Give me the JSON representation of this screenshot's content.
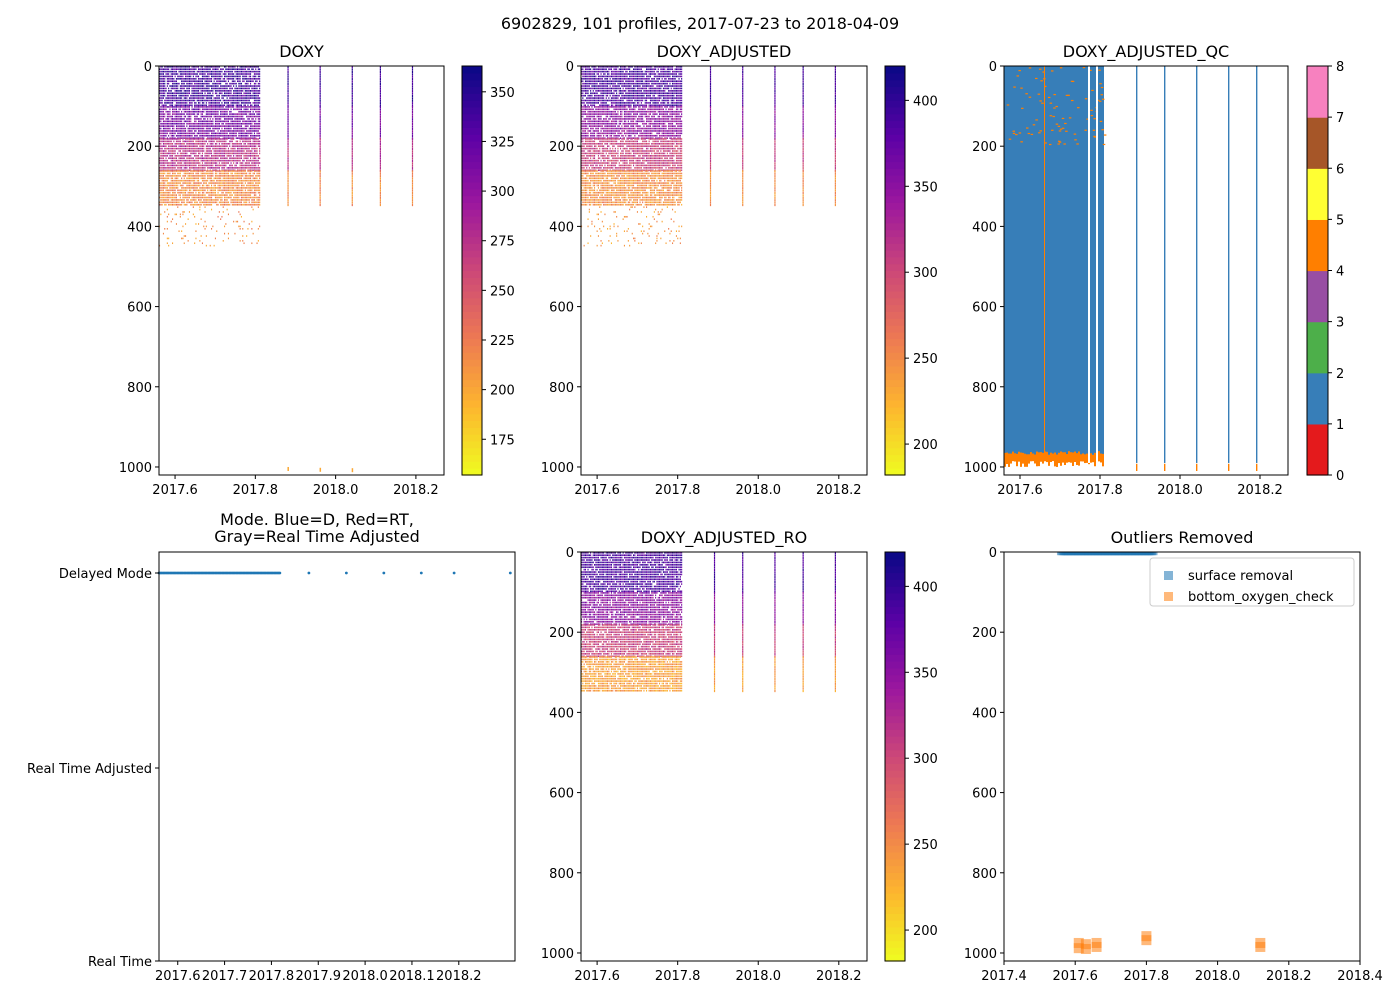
{
  "figure": {
    "suptitle": "6902829, 101 profiles, 2017-07-23 to 2018-04-09"
  },
  "colors": {
    "plasma_r": [
      "#f0f921",
      "#fdb42f",
      "#ed7953",
      "#cc4778",
      "#9c179e",
      "#5c01a6",
      "#0d0887"
    ],
    "qc": [
      "#e41a1c",
      "#377eb8",
      "#4daf4a",
      "#984ea3",
      "#ff7f00",
      "#ffff33",
      "#a65628",
      "#f781bf",
      "#999999"
    ],
    "mode_dot": "#1f77b4",
    "surface_removal": "#1f77b4",
    "bottom_oxygen_check": "#ff7f0e"
  },
  "chart_data": [
    {
      "id": "doxy",
      "type": "heatmap",
      "title": "DOXY",
      "xlim": [
        2017.56,
        2018.27
      ],
      "ylim": [
        1020,
        0
      ],
      "xticks": [
        2017.6,
        2017.8,
        2018.0,
        2018.2
      ],
      "xtick_labels": [
        "2017.6",
        "2017.8",
        "2018.0",
        "2018.2"
      ],
      "yticks": [
        0,
        200,
        400,
        600,
        800,
        1000
      ],
      "ytick_labels": [
        "0",
        "200",
        "400",
        "600",
        "800",
        "1000"
      ],
      "cbar_range": [
        157,
        363
      ],
      "cbar_ticks": [
        175,
        200,
        225,
        250,
        275,
        300,
        325,
        350
      ],
      "cbar_labels": [
        "175",
        "200",
        "225",
        "250",
        "275",
        "300",
        "325",
        "350"
      ],
      "dense_x": [
        2017.56,
        2017.81
      ],
      "sparse_x": [
        2017.88,
        2017.96,
        2018.04,
        2018.11,
        2018.19
      ],
      "bands": [
        [
          0,
          100,
          340
        ],
        [
          100,
          180,
          315
        ],
        [
          180,
          260,
          275
        ],
        [
          260,
          350,
          215
        ],
        [
          350,
          450,
          210
        ]
      ],
      "bottom_dots": [
        [
          2017.88,
          1000
        ],
        [
          2017.96,
          1002
        ],
        [
          2018.04,
          1003
        ]
      ]
    },
    {
      "id": "doxy_adj",
      "type": "heatmap",
      "title": "DOXY_ADJUSTED",
      "xlim": [
        2017.56,
        2018.27
      ],
      "ylim": [
        1020,
        0
      ],
      "xticks": [
        2017.6,
        2017.8,
        2018.0,
        2018.2
      ],
      "xtick_labels": [
        "2017.6",
        "2017.8",
        "2018.0",
        "2018.2"
      ],
      "yticks": [
        0,
        200,
        400,
        600,
        800,
        1000
      ],
      "ytick_labels": [
        "0",
        "200",
        "400",
        "600",
        "800",
        "1000"
      ],
      "cbar_range": [
        182,
        420
      ],
      "cbar_ticks": [
        200,
        250,
        300,
        350,
        400
      ],
      "cbar_labels": [
        "200",
        "250",
        "300",
        "350",
        "400"
      ],
      "dense_x": [
        2017.56,
        2017.81
      ],
      "sparse_x": [
        2017.88,
        2017.96,
        2018.04,
        2018.11,
        2018.19
      ],
      "bands": [
        [
          0,
          100,
          390
        ],
        [
          100,
          180,
          350
        ],
        [
          180,
          260,
          305
        ],
        [
          260,
          350,
          245
        ],
        [
          350,
          450,
          240
        ]
      ],
      "bottom_dots": []
    },
    {
      "id": "doxy_adj_qc",
      "type": "heatmap",
      "title": "DOXY_ADJUSTED_QC",
      "xlim": [
        2017.56,
        2018.27
      ],
      "ylim": [
        1020,
        0
      ],
      "xticks": [
        2017.6,
        2017.8,
        2018.0,
        2018.2
      ],
      "xtick_labels": [
        "2017.6",
        "2017.8",
        "2018.0",
        "2018.2"
      ],
      "yticks": [
        0,
        200,
        400,
        600,
        800,
        1000
      ],
      "ytick_labels": [
        "0",
        "200",
        "400",
        "600",
        "800",
        "1000"
      ],
      "cbar_range": [
        0,
        8
      ],
      "cbar_ticks": [
        0,
        1,
        2,
        3,
        4,
        5,
        6,
        7,
        8
      ],
      "cbar_labels": [
        "0",
        "1",
        "2",
        "3",
        "4",
        "5",
        "6",
        "7",
        "8"
      ],
      "dense_x": [
        2017.56,
        2017.81
      ],
      "sparse_x": [
        2017.89,
        2017.96,
        2018.04,
        2018.12,
        2018.19
      ],
      "qc_values": {
        "main": 1,
        "bottom": 4,
        "bottom_start": 970
      }
    },
    {
      "id": "mode",
      "type": "scatter",
      "title_lines": [
        "Mode. Blue=D, Red=RT,",
        "Gray=Real Time Adjusted"
      ],
      "xlim": [
        2017.56,
        2018.32
      ],
      "xticks": [
        2017.6,
        2017.7,
        2017.8,
        2017.9,
        2018.0,
        2018.1,
        2018.2
      ],
      "xtick_labels": [
        "2017.6",
        "2017.7",
        "2017.8",
        "2017.9",
        "2018.0",
        "2018.1",
        "2018.2"
      ],
      "ycats": [
        "Delayed Mode",
        "Real Time Adjusted",
        "Real Time"
      ],
      "dense_x": [
        2017.56,
        2017.82
      ],
      "sparse_x": [
        2017.88,
        2017.96,
        2018.04,
        2018.12,
        2018.19,
        2018.31
      ]
    },
    {
      "id": "doxy_adj_ro",
      "type": "heatmap",
      "title": "DOXY_ADJUSTED_RO",
      "xlim": [
        2017.56,
        2018.27
      ],
      "ylim": [
        1020,
        0
      ],
      "xticks": [
        2017.6,
        2017.8,
        2018.0,
        2018.2
      ],
      "xtick_labels": [
        "2017.6",
        "2017.8",
        "2018.0",
        "2018.2"
      ],
      "yticks": [
        0,
        200,
        400,
        600,
        800,
        1000
      ],
      "ytick_labels": [
        "0",
        "200",
        "400",
        "600",
        "800",
        "1000"
      ],
      "cbar_range": [
        182,
        420
      ],
      "cbar_ticks": [
        200,
        250,
        300,
        350,
        400
      ],
      "cbar_labels": [
        "200",
        "250",
        "300",
        "350",
        "400"
      ],
      "dense_x": [
        2017.56,
        2017.81
      ],
      "sparse_x": [
        2017.89,
        2017.96,
        2018.04,
        2018.11,
        2018.19
      ],
      "bands": [
        [
          0,
          100,
          390
        ],
        [
          100,
          180,
          350
        ],
        [
          180,
          260,
          305
        ],
        [
          260,
          350,
          235
        ]
      ],
      "bottom_dots": []
    },
    {
      "id": "outliers",
      "type": "scatter",
      "title": "Outliers Removed",
      "xlim": [
        2017.4,
        2018.4
      ],
      "ylim": [
        1020,
        0
      ],
      "xticks": [
        2017.4,
        2017.6,
        2017.8,
        2018.0,
        2018.2,
        2018.4
      ],
      "xtick_labels": [
        "2017.4",
        "2017.6",
        "2017.8",
        "2018.0",
        "2018.2",
        "2018.4"
      ],
      "yticks": [
        0,
        200,
        400,
        600,
        800,
        1000
      ],
      "ytick_labels": [
        "0",
        "200",
        "400",
        "600",
        "800",
        "1000"
      ],
      "series": [
        {
          "name": "surface removal",
          "x_range": [
            2017.56,
            2017.82
          ],
          "y": [
            0,
            8
          ]
        },
        {
          "name": "bottom_oxygen_check",
          "points": [
            [
              2017.61,
              975
            ],
            [
              2017.61,
              988
            ],
            [
              2017.63,
              978
            ],
            [
              2017.63,
              990
            ],
            [
              2017.66,
              975
            ],
            [
              2017.66,
              985
            ],
            [
              2017.8,
              958
            ],
            [
              2017.8,
              968
            ],
            [
              2018.12,
              975
            ],
            [
              2018.12,
              985
            ]
          ]
        }
      ]
    }
  ]
}
